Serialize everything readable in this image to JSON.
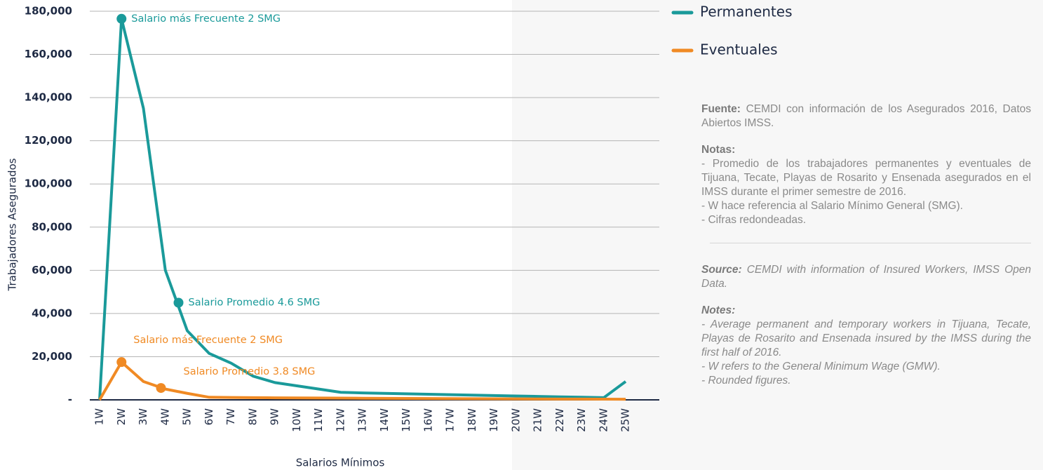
{
  "chart_data": {
    "type": "line",
    "y_label": "Trabajadores Asegurados",
    "x_label": "Salarios Mínimos",
    "categories": [
      "1W",
      "2W",
      "3W",
      "4W",
      "5W",
      "6W",
      "7W",
      "8W",
      "9W",
      "10W",
      "11W",
      "12W",
      "13W",
      "14W",
      "15W",
      "16W",
      "17W",
      "18W",
      "19W",
      "20W",
      "21W",
      "22W",
      "23W",
      "24W",
      "25W"
    ],
    "series": [
      {
        "name": "Permanentes",
        "color": "#1a9a9a",
        "values": [
          0,
          176500,
          135000,
          60000,
          32000,
          21500,
          17000,
          11000,
          8000,
          6500,
          5000,
          3500,
          3200,
          3000,
          2800,
          2600,
          2400,
          2200,
          2000,
          1800,
          1600,
          1400,
          1200,
          1000,
          8500
        ]
      },
      {
        "name": "Eventuales",
        "color": "#f08a24",
        "values": [
          0,
          17500,
          8500,
          5000,
          3000,
          1200,
          1100,
          1000,
          950,
          900,
          850,
          800,
          750,
          700,
          650,
          600,
          560,
          520,
          480,
          440,
          400,
          380,
          360,
          340,
          300
        ]
      }
    ],
    "annotations": [
      {
        "text": "Salario más Frecuente 2 SMG",
        "x": 2,
        "y": 176500,
        "color": "#1a9a9a"
      },
      {
        "text": "Salario Promedio 4.6 SMG",
        "x": 4.6,
        "y": 45000,
        "color": "#1a9a9a"
      },
      {
        "text": "Salario más Frecuente 2 SMG",
        "x": 2,
        "y": 17500,
        "color": "#f08a24"
      },
      {
        "text": "Salario Promedio 3.8 SMG",
        "x": 3.8,
        "y": 5500,
        "color": "#f08a24"
      }
    ],
    "ylim": [
      0,
      180000
    ],
    "yticks": [
      {
        "value": 0,
        "label": "-"
      },
      {
        "value": 20000,
        "label": "20,000"
      },
      {
        "value": 40000,
        "label": "40,000"
      },
      {
        "value": 60000,
        "label": "60,000"
      },
      {
        "value": 80000,
        "label": "80,000"
      },
      {
        "value": 100000,
        "label": "100,000"
      },
      {
        "value": 120000,
        "label": "120,000"
      },
      {
        "value": 140000,
        "label": "140,000"
      },
      {
        "value": 160000,
        "label": "160,000"
      },
      {
        "value": 180000,
        "label": "180,000"
      }
    ],
    "grid": true
  },
  "side_panel": {
    "fuente_label": "Fuente:",
    "fuente_text": "CEMDI con información de los Asegurados 2016, Datos Abiertos IMSS.",
    "notas_label": "Notas:",
    "notas_items": [
      "- Promedio de los trabajadores permanentes y eventuales de Tijuana, Tecate, Playas de Rosarito y Ensenada asegurados en el IMSS durante el primer semestre de 2016.",
      "- W hace referencia al Salario Mínimo General (SMG).",
      "- Cifras redondeadas."
    ],
    "source_label": "Source:",
    "source_text": "CEMDI with information of Insured Workers, IMSS Open Data.",
    "notes_label": "Notes:",
    "notes_items": [
      "- Average permanent and temporary workers in Tijuana, Tecate, Playas de Rosarito and Ensenada insured by the IMSS during the first half of 2016.",
      "- W refers to the General Minimum Wage (GMW).",
      "- Rounded figures."
    ]
  }
}
